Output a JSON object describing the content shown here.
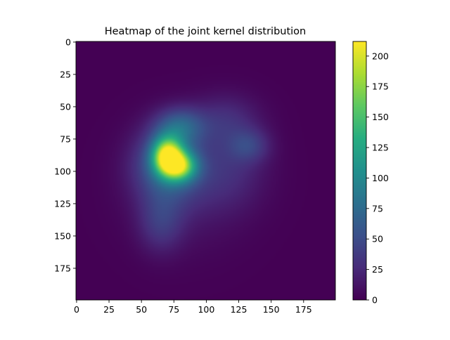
{
  "chart_data": {
    "type": "heatmap",
    "title": "Heatmap of the joint kernel distribution",
    "xlabel": "",
    "ylabel": "",
    "grid_size": [
      200,
      200
    ],
    "xlim": [
      0,
      199
    ],
    "ylim": [
      199,
      0
    ],
    "x_ticks": [
      0,
      25,
      50,
      75,
      100,
      125,
      150,
      175
    ],
    "y_ticks": [
      0,
      25,
      50,
      75,
      100,
      125,
      150,
      175
    ],
    "colormap": "viridis",
    "colorbar": {
      "min": 0,
      "max": 212,
      "ticks": [
        0,
        25,
        50,
        75,
        100,
        125,
        150,
        175,
        200
      ]
    },
    "components": [
      {
        "x": 70,
        "y": 88,
        "sigma_x": 8,
        "sigma_y": 10,
        "amplitude": 160
      },
      {
        "x": 80,
        "y": 96,
        "sigma_x": 9,
        "sigma_y": 8,
        "amplitude": 120
      },
      {
        "x": 70,
        "y": 95,
        "sigma_x": 18,
        "sigma_y": 20,
        "amplitude": 65
      },
      {
        "x": 80,
        "y": 65,
        "sigma_x": 13,
        "sigma_y": 10,
        "amplitude": 55
      },
      {
        "x": 65,
        "y": 140,
        "sigma_x": 12,
        "sigma_y": 16,
        "amplitude": 30
      },
      {
        "x": 115,
        "y": 60,
        "sigma_x": 18,
        "sigma_y": 14,
        "amplitude": 25
      },
      {
        "x": 133,
        "y": 80,
        "sigma_x": 11,
        "sigma_y": 9,
        "amplitude": 32
      },
      {
        "x": 118,
        "y": 98,
        "sigma_x": 20,
        "sigma_y": 22,
        "amplitude": 22
      },
      {
        "x": 85,
        "y": 115,
        "sigma_x": 30,
        "sigma_y": 30,
        "amplitude": 15
      }
    ]
  }
}
